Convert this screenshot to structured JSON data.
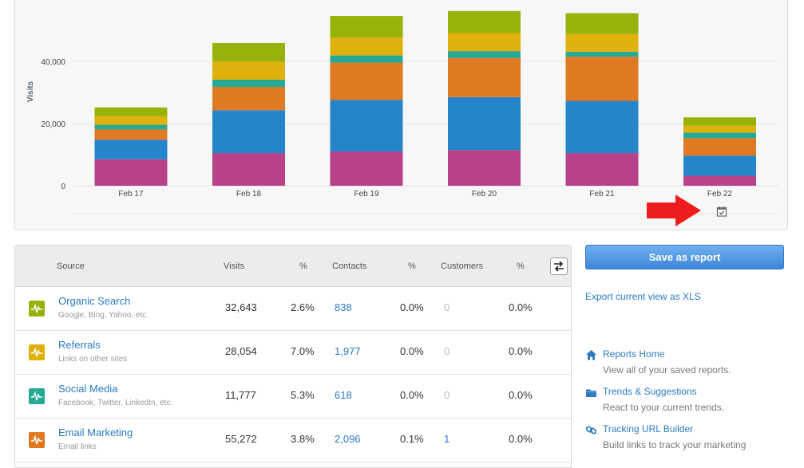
{
  "chart_data": {
    "type": "bar",
    "stacked": true,
    "categories": [
      "Feb 17",
      "Feb 18",
      "Feb 19",
      "Feb 20",
      "Feb 21",
      "Feb 22"
    ],
    "ylabel": "Visits",
    "ylim": [
      0,
      60000
    ],
    "yticks": [
      0,
      20000,
      40000
    ],
    "ytick_labels": [
      "0",
      "20,000",
      "40,000"
    ],
    "grid": true,
    "series": [
      {
        "color": "#b8428a",
        "values": [
          8500,
          10500,
          11000,
          11500,
          10500,
          3200
        ]
      },
      {
        "color": "#2585cb",
        "values": [
          6300,
          13800,
          16600,
          17000,
          16800,
          6500
        ]
      },
      {
        "color": "#e07a22",
        "values": [
          3300,
          7500,
          12000,
          12600,
          14200,
          5600
        ]
      },
      {
        "color": "#25a894",
        "values": [
          1500,
          2300,
          2300,
          2200,
          1600,
          1800
        ]
      },
      {
        "color": "#dfb10c",
        "values": [
          2800,
          5800,
          5700,
          5800,
          5700,
          2200
        ]
      },
      {
        "color": "#98b20c",
        "values": [
          2800,
          6000,
          7000,
          7100,
          6700,
          2700
        ]
      }
    ]
  },
  "table": {
    "headers": {
      "source": "Source",
      "visits": "Visits",
      "visits_pct": "%",
      "contacts": "Contacts",
      "contacts_pct": "%",
      "customers": "Customers",
      "customers_pct": "%"
    },
    "rows": [
      {
        "name": "Organic Search",
        "sub": "Google, Bing, Yahoo, etc.",
        "visits": "32,643",
        "visits_pct": "2.6%",
        "contacts": "838",
        "contacts_pct": "0.0%",
        "customers": "0",
        "customers_pct": "0.0%",
        "color": "#98b20c",
        "icon": "activity-icon"
      },
      {
        "name": "Referrals",
        "sub": "Links on other sites",
        "visits": "28,054",
        "visits_pct": "7.0%",
        "contacts": "1,977",
        "contacts_pct": "0.0%",
        "customers": "0",
        "customers_pct": "0.0%",
        "color": "#dfb10c",
        "icon": "activity-icon"
      },
      {
        "name": "Social Media",
        "sub": "Facebook, Twitter, LinkedIn, etc.",
        "visits": "11,777",
        "visits_pct": "5.3%",
        "contacts": "618",
        "contacts_pct": "0.0%",
        "customers": "0",
        "customers_pct": "0.0%",
        "color": "#25a894",
        "icon": "activity-icon"
      },
      {
        "name": "Email Marketing",
        "sub": "Email links",
        "visits": "55,272",
        "visits_pct": "3.8%",
        "contacts": "2,096",
        "contacts_pct": "0.1%",
        "customers": "1",
        "customers_pct": "0.0%",
        "color": "#e07a22",
        "icon": "activity-icon"
      }
    ]
  },
  "actions": {
    "save_report": "Save as report",
    "export": "Export current view as XLS"
  },
  "side_links": [
    {
      "title": "Reports Home",
      "desc": "View all of your saved reports.",
      "icon": "home-icon"
    },
    {
      "title": "Trends & Suggestions",
      "desc": "React to your current trends.",
      "icon": "folder-icon"
    },
    {
      "title": "Tracking URL Builder",
      "desc": "Build links to track your marketing",
      "icon": "link-icon"
    }
  ]
}
